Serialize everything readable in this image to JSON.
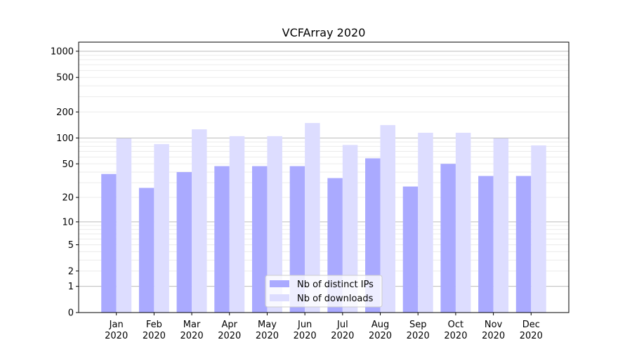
{
  "chart_data": {
    "type": "bar",
    "title": "VCFArray 2020",
    "xlabel": "",
    "ylabel": "",
    "yscale": "log(1+x)",
    "ylim": [
      0,
      1200
    ],
    "yticks": [
      0,
      1,
      2,
      5,
      10,
      20,
      50,
      100,
      200,
      500,
      1000
    ],
    "ytick_labels": [
      "0",
      "1",
      "2",
      "5",
      "10",
      "20",
      "50",
      "100",
      "200",
      "500",
      "1000"
    ],
    "grid": true,
    "legend_position": "bottom-center",
    "categories": [
      "Jan\n2020",
      "Feb\n2020",
      "Mar\n2020",
      "Apr\n2020",
      "May\n2020",
      "Jun\n2020",
      "Jul\n2020",
      "Aug\n2020",
      "Sep\n2020",
      "Oct\n2020",
      "Nov\n2020",
      "Dec\n2020"
    ],
    "series": [
      {
        "name": "Nb of distinct IPs",
        "color": "#aaaaff",
        "values": [
          38,
          26,
          40,
          47,
          47,
          47,
          34,
          58,
          27,
          50,
          36,
          36
        ]
      },
      {
        "name": "Nb of downloads",
        "color": "#ddddff",
        "values": [
          99,
          85,
          126,
          105,
          105,
          149,
          83,
          141,
          115,
          115,
          99,
          82
        ]
      }
    ]
  }
}
